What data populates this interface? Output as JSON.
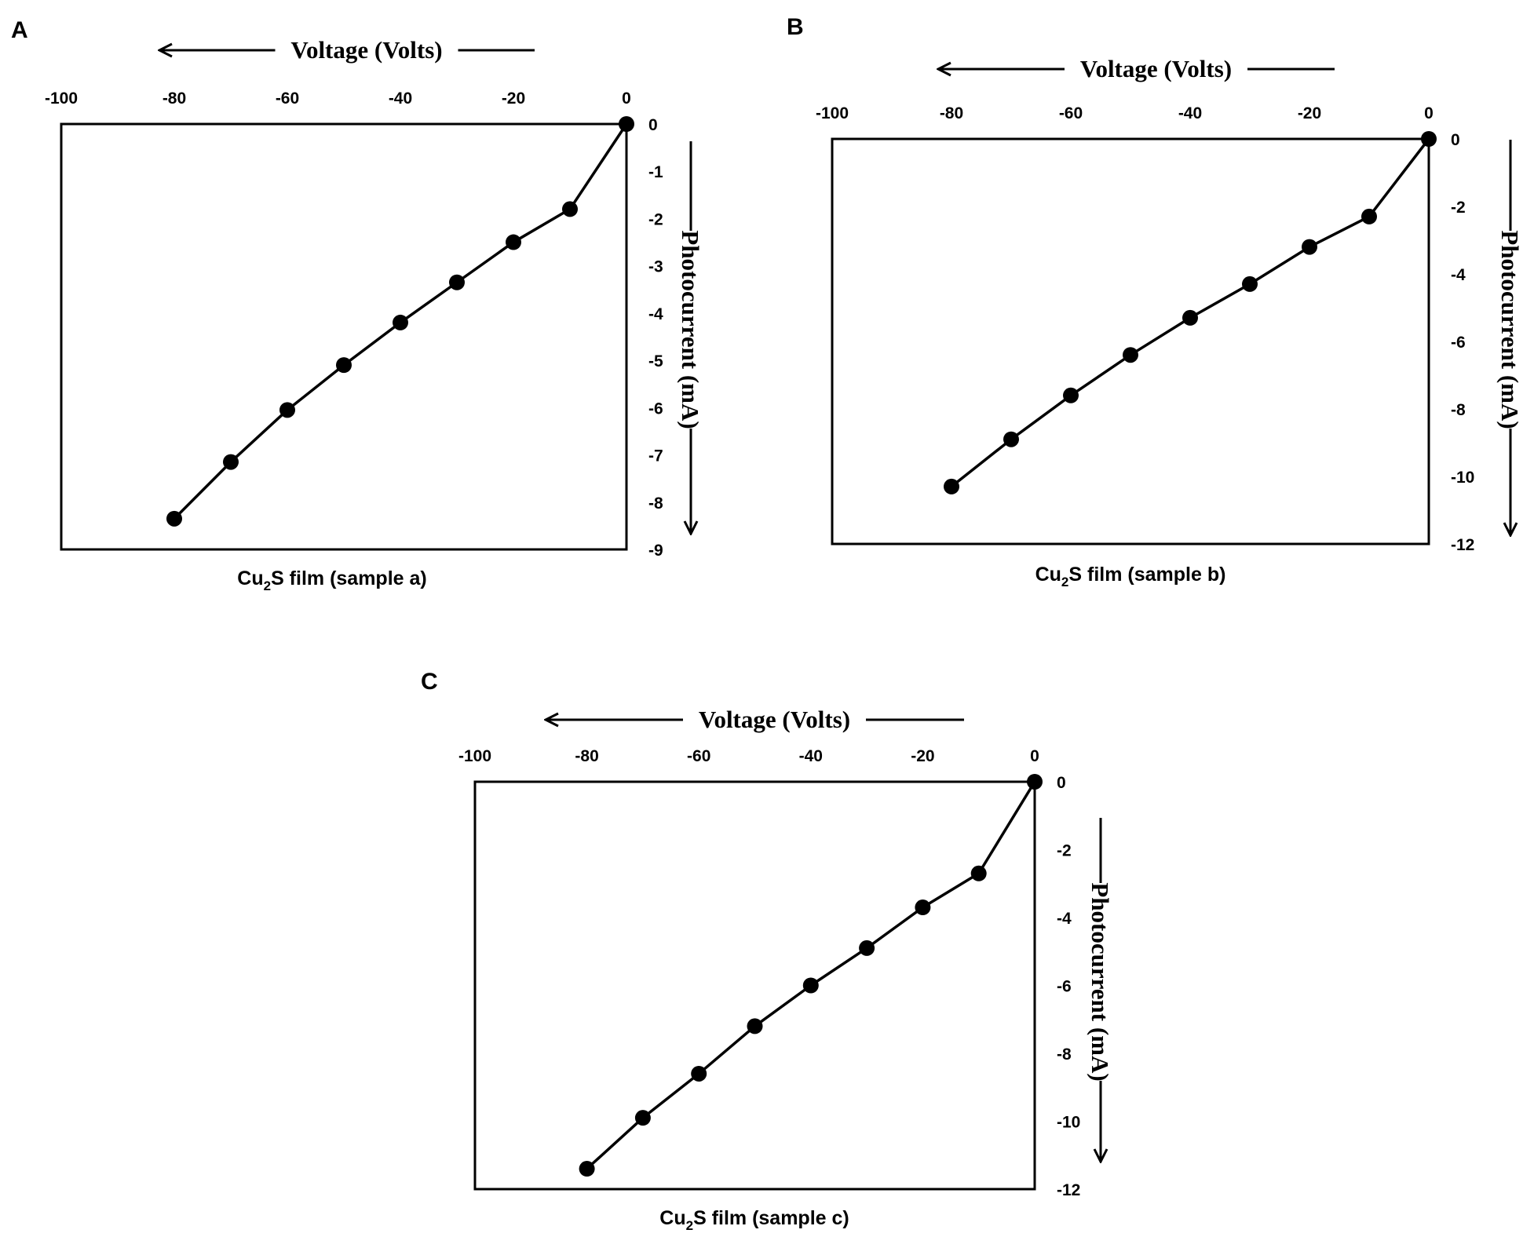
{
  "chart_data": [
    {
      "type": "line",
      "panel_label": "A",
      "caption": {
        "pre": "Cu",
        "sub": "2",
        "post": "S film (sample a)"
      },
      "xlabel": "Voltage (Volts)",
      "ylabel": "Photocurrent  (mA)",
      "xlim": [
        -100,
        0
      ],
      "ylim": [
        -9,
        0
      ],
      "x_ticks": [
        -100,
        -80,
        -60,
        -40,
        -20,
        0
      ],
      "y_ticks": [
        0,
        -1,
        -2,
        -3,
        -4,
        -5,
        -6,
        -7,
        -8,
        -9
      ],
      "series": [
        {
          "x": [
            0,
            -10,
            -20,
            -30,
            -40,
            -50,
            -60,
            -70,
            -80
          ],
          "values": [
            0,
            -1.8,
            -2.5,
            -3.35,
            -4.2,
            -5.1,
            -6.05,
            -7.15,
            -8.35
          ]
        }
      ]
    },
    {
      "type": "line",
      "panel_label": "B",
      "caption": {
        "pre": "Cu",
        "sub": "2",
        "post": "S film (sample b)"
      },
      "xlabel": "Voltage (Volts)",
      "ylabel": "Photocurrent  (mA)",
      "xlim": [
        -100,
        0
      ],
      "ylim": [
        -12,
        0
      ],
      "x_ticks": [
        -100,
        -80,
        -60,
        -40,
        -20,
        0
      ],
      "y_ticks": [
        0,
        -2,
        -4,
        -6,
        -8,
        -10,
        -12
      ],
      "series": [
        {
          "x": [
            0,
            -10,
            -20,
            -30,
            -40,
            -50,
            -60,
            -70,
            -80
          ],
          "values": [
            0,
            -2.3,
            -3.2,
            -4.3,
            -5.3,
            -6.4,
            -7.6,
            -8.9,
            -10.3
          ]
        }
      ]
    },
    {
      "type": "line",
      "panel_label": "C",
      "caption": {
        "pre": "Cu",
        "sub": "2",
        "post": "S film (sample c)"
      },
      "xlabel": "Voltage (Volts)",
      "ylabel": "Photocurrent  (mA)",
      "xlim": [
        -100,
        0
      ],
      "ylim": [
        -12,
        0
      ],
      "x_ticks": [
        -100,
        -80,
        -60,
        -40,
        -20,
        0
      ],
      "y_ticks": [
        0,
        -2,
        -4,
        -6,
        -8,
        -10,
        -12
      ],
      "series": [
        {
          "x": [
            0,
            -10,
            -20,
            -30,
            -40,
            -50,
            -60,
            -70,
            -80
          ],
          "values": [
            0,
            -2.7,
            -3.7,
            -4.9,
            -6.0,
            -7.2,
            -8.6,
            -9.9,
            -11.4
          ]
        }
      ]
    }
  ]
}
